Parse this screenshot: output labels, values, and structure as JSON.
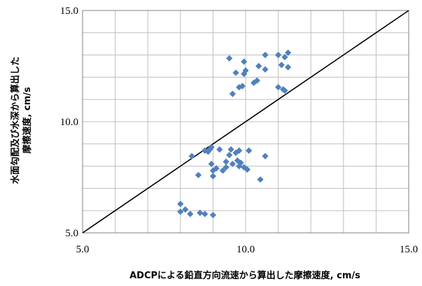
{
  "chart_data": {
    "type": "scatter",
    "xlabel": "ADCPによる鉛直方向流速から算出した摩擦速度, cm/s",
    "ylabel_lines": [
      "水面勾配及び水深から算出した",
      "摩擦速度, cm/s"
    ],
    "xlim": [
      5.0,
      15.0
    ],
    "ylim": [
      5.0,
      15.0
    ],
    "x_ticks": [
      5.0,
      10.0,
      15.0
    ],
    "y_ticks": [
      5.0,
      10.0,
      15.0
    ],
    "x_tick_labels": [
      "5.0",
      "10.0",
      "15.0"
    ],
    "y_tick_labels": [
      "5.0",
      "10.0",
      "15.0"
    ],
    "grid_step": 1.0,
    "grid": true,
    "marker_color": "#4F81BD",
    "reference_line": {
      "from": [
        5.0,
        5.0
      ],
      "to": [
        15.0,
        15.0
      ],
      "color": "#000000"
    },
    "points": [
      [
        8.0,
        6.3
      ],
      [
        8.0,
        5.95
      ],
      [
        8.15,
        6.05
      ],
      [
        8.3,
        5.85
      ],
      [
        8.6,
        5.9
      ],
      [
        8.75,
        5.85
      ],
      [
        9.0,
        5.8
      ],
      [
        8.35,
        8.45
      ],
      [
        8.55,
        7.6
      ],
      [
        8.75,
        8.7
      ],
      [
        8.85,
        8.65
      ],
      [
        8.9,
        8.75
      ],
      [
        8.95,
        8.85
      ],
      [
        8.95,
        8.1
      ],
      [
        9.0,
        7.8
      ],
      [
        9.0,
        7.55
      ],
      [
        9.1,
        7.9
      ],
      [
        9.2,
        8.75
      ],
      [
        9.3,
        7.8
      ],
      [
        9.4,
        7.95
      ],
      [
        9.4,
        8.2
      ],
      [
        9.5,
        8.5
      ],
      [
        9.55,
        8.75
      ],
      [
        9.6,
        8.1
      ],
      [
        9.7,
        8.6
      ],
      [
        9.75,
        8.25
      ],
      [
        9.8,
        8.7
      ],
      [
        9.8,
        8.0
      ],
      [
        9.85,
        8.15
      ],
      [
        9.95,
        7.95
      ],
      [
        10.05,
        7.85
      ],
      [
        10.1,
        8.7
      ],
      [
        10.45,
        7.4
      ],
      [
        10.6,
        8.45
      ],
      [
        9.5,
        12.85
      ],
      [
        9.6,
        11.25
      ],
      [
        9.7,
        12.2
      ],
      [
        9.8,
        11.55
      ],
      [
        9.9,
        11.6
      ],
      [
        9.95,
        12.15
      ],
      [
        9.95,
        12.7
      ],
      [
        10.0,
        12.3
      ],
      [
        10.25,
        11.75
      ],
      [
        10.35,
        11.85
      ],
      [
        10.4,
        12.5
      ],
      [
        10.6,
        12.35
      ],
      [
        10.6,
        13.0
      ],
      [
        11.0,
        13.0
      ],
      [
        11.0,
        11.55
      ],
      [
        11.1,
        12.55
      ],
      [
        11.15,
        11.45
      ],
      [
        11.2,
        11.4
      ],
      [
        11.2,
        12.9
      ],
      [
        11.3,
        13.1
      ],
      [
        11.3,
        12.45
      ]
    ]
  }
}
